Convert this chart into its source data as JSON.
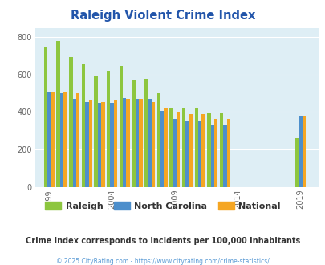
{
  "title": "Raleigh Violent Crime Index",
  "title_color": "#2255aa",
  "background_color": "#deeef5",
  "fig_background": "#ffffff",
  "years": [
    1999,
    2000,
    2001,
    2002,
    2003,
    2004,
    2005,
    2006,
    2007,
    2008,
    2009,
    2010,
    2011,
    2012,
    2013,
    2019
  ],
  "raleigh": [
    750,
    780,
    695,
    655,
    590,
    620,
    645,
    575,
    580,
    500,
    420,
    420,
    420,
    395,
    395,
    260
  ],
  "north_carolina": [
    505,
    500,
    470,
    455,
    450,
    450,
    475,
    470,
    470,
    405,
    365,
    350,
    350,
    330,
    330,
    375
  ],
  "national": [
    505,
    510,
    500,
    465,
    455,
    463,
    470,
    470,
    455,
    420,
    400,
    390,
    390,
    365,
    365,
    380
  ],
  "raleigh_color": "#8dc63f",
  "nc_color": "#4d8fcc",
  "national_color": "#f5a623",
  "ylim": [
    0,
    850
  ],
  "yticks": [
    0,
    200,
    400,
    600,
    800
  ],
  "xtick_labels": [
    "1999",
    "2004",
    "2009",
    "2014",
    "2019"
  ],
  "xtick_positions": [
    1999,
    2004,
    2009,
    2014,
    2019
  ],
  "bar_width": 0.28,
  "legend_labels": [
    "Raleigh",
    "North Carolina",
    "National"
  ],
  "subtitle": "Crime Index corresponds to incidents per 100,000 inhabitants",
  "subtitle_color": "#333333",
  "copyright": "© 2025 CityRating.com - https://www.cityrating.com/crime-statistics/",
  "copyright_color": "#5b9bd5"
}
